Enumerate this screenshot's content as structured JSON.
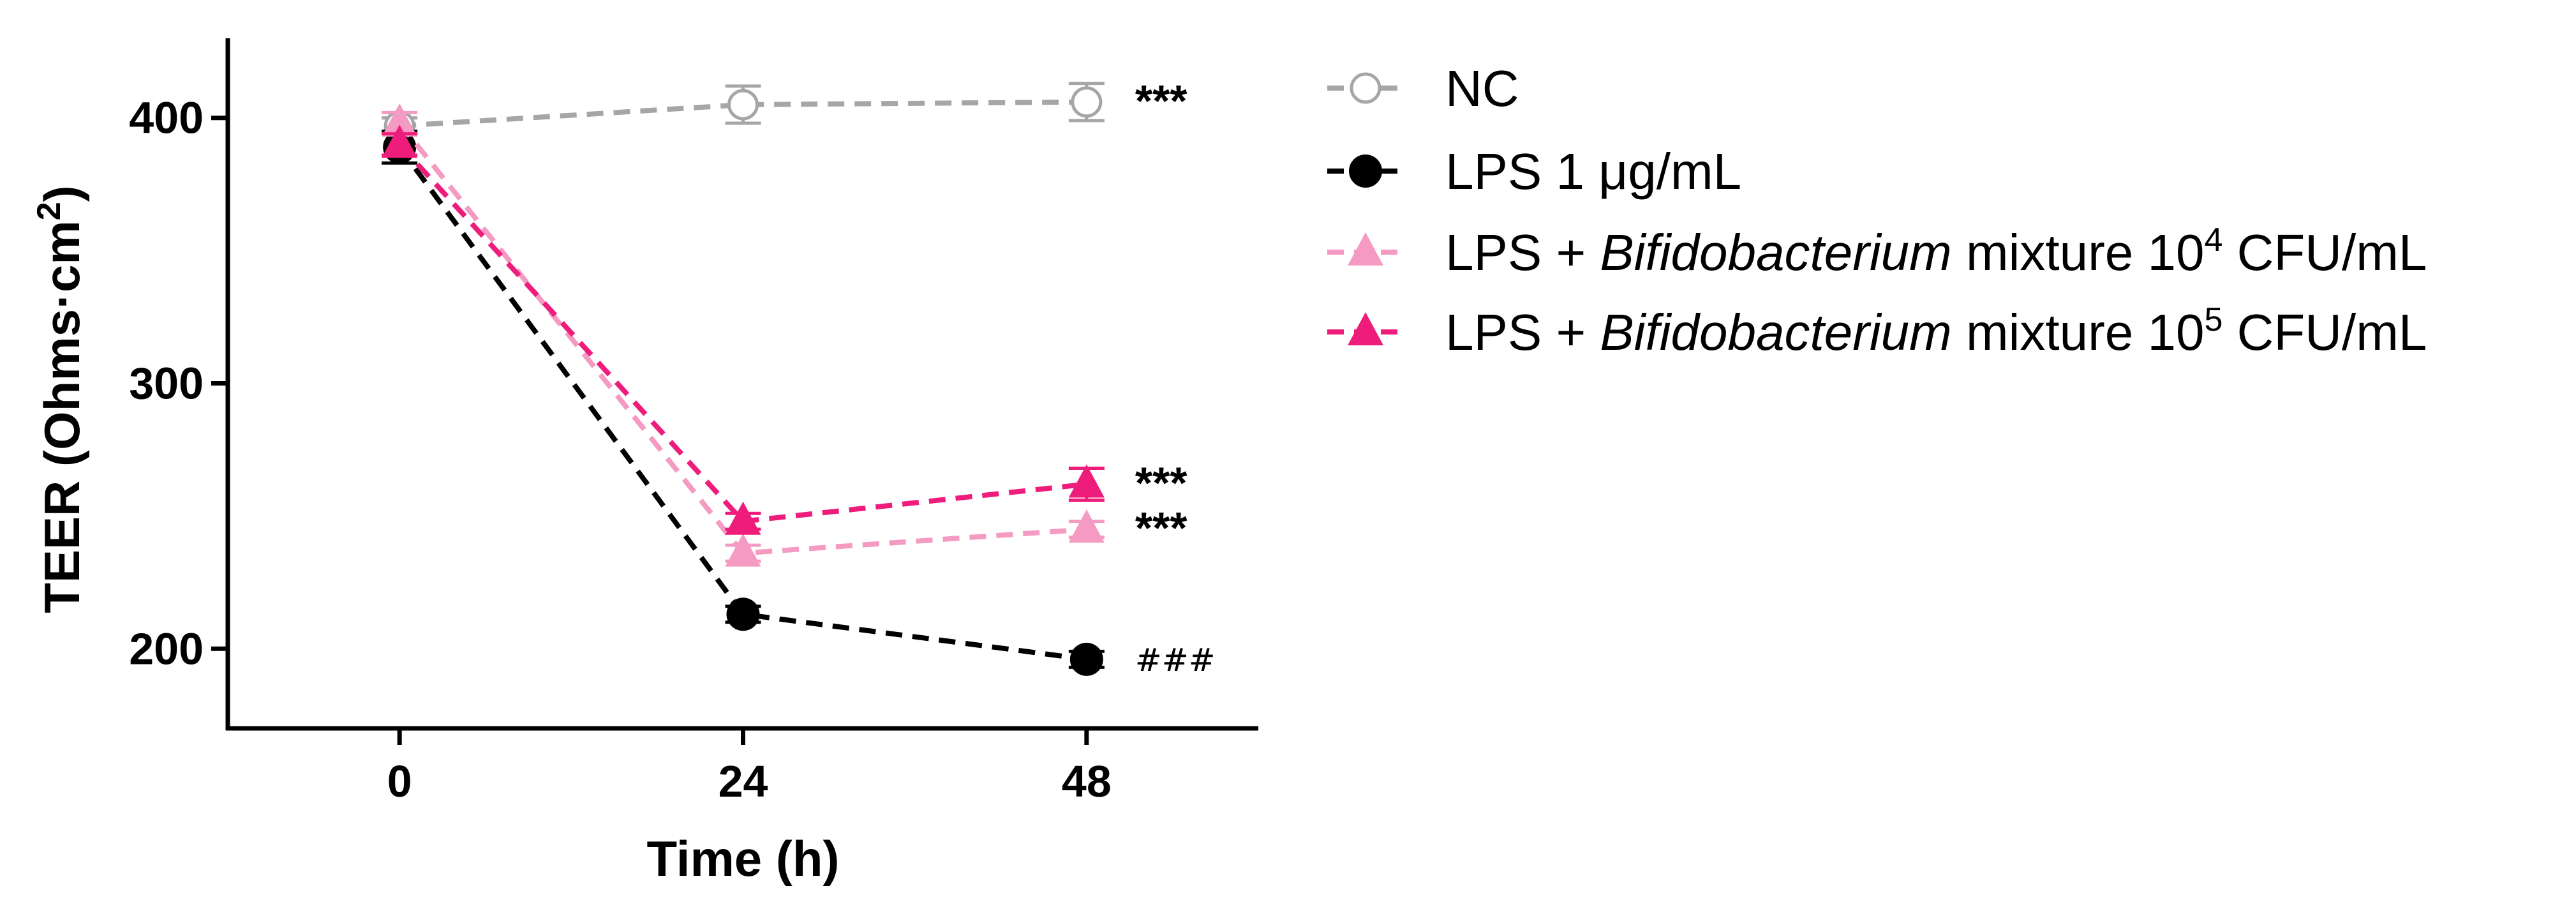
{
  "chart_data": {
    "type": "line",
    "title": "",
    "xlabel": "Time (h)",
    "ylabel": {
      "main": "TEER (Ohms·cm",
      "sup": "2",
      "close": ")"
    },
    "x": [
      0,
      24,
      48
    ],
    "xlim": [
      -12,
      60
    ],
    "ylim": [
      170,
      430
    ],
    "xticks": [
      0,
      24,
      48
    ],
    "yticks": [
      200,
      300,
      400
    ],
    "grid": false,
    "legend_position": "right",
    "series": [
      {
        "key": "nc",
        "legend": {
          "pre": "NC",
          "italic": "",
          "mid": "",
          "sup": "",
          "post": ""
        },
        "values": [
          397,
          405,
          406
        ],
        "errors": [
          3,
          7,
          7
        ],
        "color": "#a6a6a6",
        "marker": "circle-open",
        "annotation": "***"
      },
      {
        "key": "lps",
        "legend": {
          "pre": "LPS 1 μg/mL",
          "italic": "",
          "mid": "",
          "sup": "",
          "post": ""
        },
        "values": [
          389,
          213,
          196
        ],
        "errors": [
          6,
          3,
          3
        ],
        "color": "#000000",
        "marker": "circle-filled",
        "annotation": "###"
      },
      {
        "key": "bifido4",
        "legend": {
          "pre": "LPS + ",
          "italic": "Bifidobacterium",
          "mid": " mixture 10",
          "sup": "4",
          "post": " CFU/mL"
        },
        "values": [
          398,
          236,
          245
        ],
        "errors": [
          4,
          3,
          3
        ],
        "color": "#f59ac2",
        "marker": "triangle-filled",
        "annotation": "***"
      },
      {
        "key": "bifido5",
        "legend": {
          "pre": "LPS + ",
          "italic": "Bifidobacterium",
          "mid": " mixture 10",
          "sup": "5",
          "post": " CFU/mL"
        },
        "values": [
          390,
          248,
          262
        ],
        "errors": [
          4,
          3,
          6
        ],
        "color": "#ee1c7b",
        "marker": "triangle-filled",
        "annotation": "***"
      }
    ]
  }
}
